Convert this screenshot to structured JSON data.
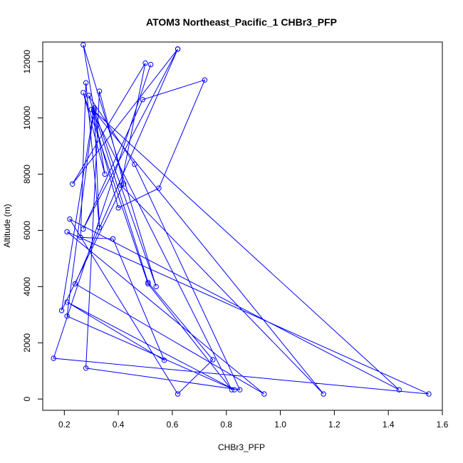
{
  "chart_data": {
    "type": "line",
    "title": "ATOM3 Northeast_Pacific_1 CHBr3_PFP",
    "xlabel": "CHBr3_PFP",
    "ylabel": "Altitude (m)",
    "xlim": [
      0.12,
      1.6
    ],
    "ylim": [
      -400,
      12700
    ],
    "xticks": [
      0.2,
      0.4,
      0.6,
      0.8,
      1.0,
      1.2,
      1.4,
      1.6
    ],
    "xtick_labels": [
      "0.2",
      "0.4",
      "0.6",
      "0.8",
      "1.0",
      "1.2",
      "1.4",
      "1.6"
    ],
    "yticks": [
      0,
      2000,
      4000,
      6000,
      8000,
      10000,
      12000
    ],
    "ytick_labels": [
      "0",
      "2000",
      "4000",
      "6000",
      "8000",
      "10000",
      "12000"
    ],
    "grid": false,
    "series": [
      {
        "color": "#0000ff",
        "marker": "open-circle",
        "x": [
          0.52,
          0.16,
          1.55,
          0.21,
          0.94,
          0.24,
          0.62,
          0.27,
          0.49,
          0.72,
          0.55,
          0.4,
          0.3,
          0.82,
          0.51,
          0.27,
          0.35,
          0.27,
          0.54,
          0.31,
          0.21,
          0.83,
          0.21,
          0.57,
          0.38,
          0.26,
          0.28,
          0.33,
          0.31,
          0.19,
          0.42,
          0.33,
          0.28,
          0.85,
          0.46,
          0.29,
          0.51,
          0.75,
          0.62,
          0.22,
          1.44,
          0.31,
          1.16,
          0.41,
          0.5,
          0.23,
          0.62
        ],
        "y": [
          11900,
          1450,
          180,
          5950,
          180,
          4100,
          12450,
          6050,
          10650,
          11350,
          7500,
          6800,
          10300,
          330,
          4100,
          10900,
          8000,
          12600,
          4000,
          10300,
          2950,
          330,
          3450,
          1380,
          5700,
          5750,
          11250,
          6100,
          10350,
          3150,
          7650,
          10950,
          1100,
          330,
          8350,
          10800,
          4150,
          1400,
          180,
          6400,
          330,
          10250,
          180,
          7600,
          11950,
          7650,
          12450
        ]
      }
    ]
  }
}
